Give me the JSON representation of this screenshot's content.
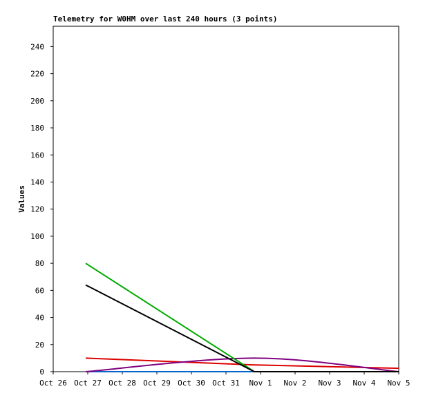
{
  "chart_data": {
    "type": "line",
    "title": "Telemetry for W0HM over last 240 hours (3 points)",
    "y_label": "Values",
    "x": [
      0.94,
      5.82,
      10
    ],
    "xlim": [
      0,
      10
    ],
    "xticks": [
      {
        "value": 0,
        "label": "Oct 26"
      },
      {
        "value": 1,
        "label": "Oct 27"
      },
      {
        "value": 2,
        "label": "Oct 28"
      },
      {
        "value": 3,
        "label": "Oct 29"
      },
      {
        "value": 4,
        "label": "Oct 30"
      },
      {
        "value": 5,
        "label": "Oct 31"
      },
      {
        "value": 6,
        "label": "Nov 1"
      },
      {
        "value": 7,
        "label": "Nov 2"
      },
      {
        "value": 8,
        "label": "Nov 3"
      },
      {
        "value": 9,
        "label": "Nov 4"
      },
      {
        "value": 10,
        "label": "Nov 5"
      }
    ],
    "ylim": [
      0,
      255
    ],
    "yticks": [
      0,
      20,
      40,
      60,
      80,
      100,
      120,
      140,
      160,
      180,
      200,
      220,
      240
    ],
    "series": [
      {
        "color": "#0066cc",
        "values": [
          0,
          0,
          0
        ]
      },
      {
        "color": "#dd0000",
        "values": [
          10,
          5,
          2.5
        ]
      },
      {
        "color": "#800080",
        "values": [
          0,
          10,
          0
        ],
        "smooth": true
      },
      {
        "color": "#00aa00",
        "values": [
          80,
          0,
          0
        ]
      },
      {
        "color": "#000000",
        "values": [
          64,
          0,
          0
        ]
      }
    ]
  }
}
